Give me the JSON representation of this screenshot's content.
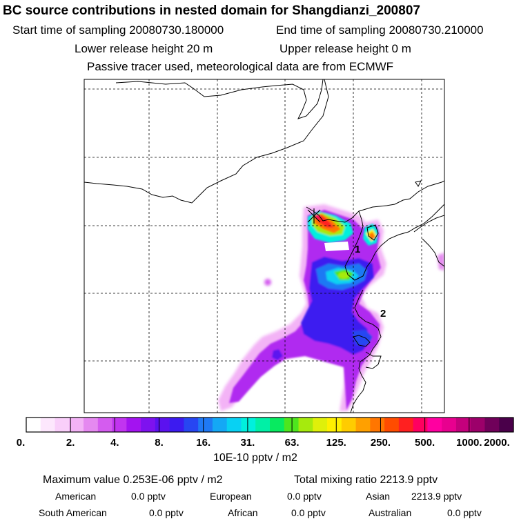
{
  "header": {
    "title": "BC  source contributions in nested domain for Shangdianzi_200807",
    "start": "Start time of sampling 20080730.180000",
    "end": "End time of sampling 20080730.210000",
    "lower": "Lower release height   20 m",
    "upper": "Upper release height    0 m",
    "passive": "Passive tracer used, meteorological data are from ECMWF"
  },
  "map": {
    "markers": [
      "1",
      "2"
    ],
    "receptor": "Shangdianzi"
  },
  "colorbar": {
    "colors": [
      "#ffffff",
      "#fde7fd",
      "#f9cffa",
      "#f3b3f6",
      "#e589f0",
      "#d45cef",
      "#c134f0",
      "#a313f0",
      "#7e12ef",
      "#5b12ef",
      "#3c1bf0",
      "#2746f2",
      "#1f79f4",
      "#14a8f5",
      "#08d1f3",
      "#00f0dd",
      "#00f0a6",
      "#08ea60",
      "#4ee61e",
      "#a6ea0d",
      "#dff00a",
      "#fff000",
      "#ffcc00",
      "#ffa000",
      "#ff7600",
      "#ff4c00",
      "#ff2020",
      "#ff0060",
      "#ff00a0",
      "#e8008f",
      "#c4007c",
      "#9c006a",
      "#70005a",
      "#4a004a"
    ],
    "labels": [
      "0.",
      "2.",
      "4.",
      "8.",
      "16.",
      "31.",
      "63.",
      "125.",
      "250.",
      "500.",
      "1000.",
      "2000."
    ],
    "units": "10E-10 pptv / m2"
  },
  "summary": {
    "max_value": "Maximum value  0.253E-06 pptv / m2",
    "total_mixing": "Total mixing ratio     2213.9 pptv",
    "contributions": [
      {
        "label": "American",
        "value": "0.0 pptv"
      },
      {
        "label": "European",
        "value": "0.0 pptv"
      },
      {
        "label": "Asian",
        "value": "2213.9 pptv"
      },
      {
        "label": "South American",
        "value": "0.0 pptv"
      },
      {
        "label": "African",
        "value": "0.0 pptv"
      },
      {
        "label": "Australian",
        "value": "0.0 pptv"
      }
    ]
  }
}
